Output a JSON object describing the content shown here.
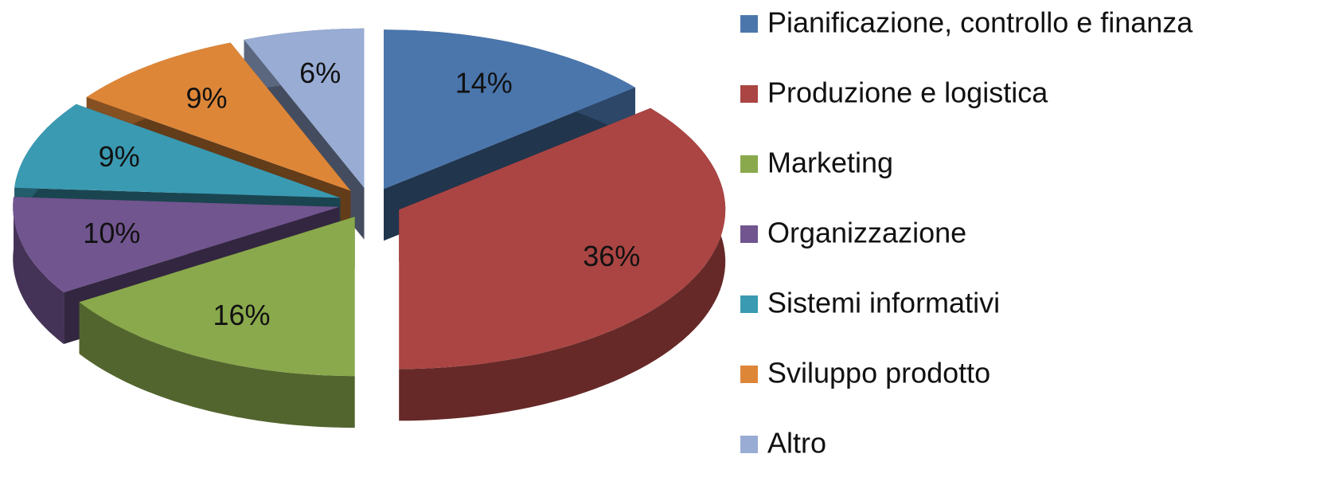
{
  "chart_data": {
    "type": "pie",
    "categories": [
      "Pianificazione, controllo e finanza",
      "Produzione e logistica",
      "Marketing",
      "Organizzazione",
      "Sistemi informativi",
      "Sviluppo prodotto",
      "Altro"
    ],
    "values": [
      14,
      36,
      16,
      10,
      9,
      9,
      6
    ],
    "value_labels": [
      "14%",
      "36%",
      "16%",
      "10%",
      "9%",
      "9%",
      "6%"
    ],
    "colors": [
      "#4a76ac",
      "#aa4543",
      "#8aa94c",
      "#71558f",
      "#3a9ab2",
      "#dd8638",
      "#98acd4"
    ],
    "legend": "right"
  }
}
